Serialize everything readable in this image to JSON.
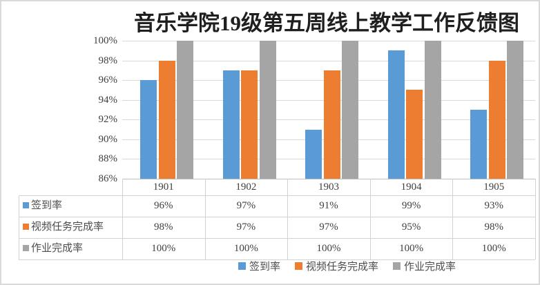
{
  "chart_data": {
    "type": "bar",
    "title": "音乐学院19级第五周线上教学工作反馈图",
    "categories": [
      "1901",
      "1902",
      "1903",
      "1904",
      "1905"
    ],
    "series": [
      {
        "name": "签到率",
        "color": "#5B9BD5",
        "values": [
          96,
          97,
          91,
          99,
          93
        ]
      },
      {
        "name": "视频任务完成率",
        "color": "#ED7D31",
        "values": [
          98,
          97,
          97,
          95,
          98
        ]
      },
      {
        "name": "作业完成率",
        "color": "#A5A5A5",
        "values": [
          100,
          100,
          100,
          100,
          100
        ]
      }
    ],
    "ylim": [
      86,
      100
    ],
    "yticks": [
      "100%",
      "98%",
      "96%",
      "94%",
      "92%",
      "90%",
      "88%",
      "86%"
    ],
    "value_suffix": "%",
    "grid": true,
    "legend_position": "bottom",
    "show_data_table": true
  },
  "styles": {
    "grid_color": "#D9D9D9",
    "axis_line_color": "#BFBFBF",
    "table_border_color": "#D2D2D2",
    "text_color": "#404040",
    "title_color": "#1F1F1F",
    "background": "#FFFFFF",
    "frame_border_color": "#D9D9D9"
  }
}
